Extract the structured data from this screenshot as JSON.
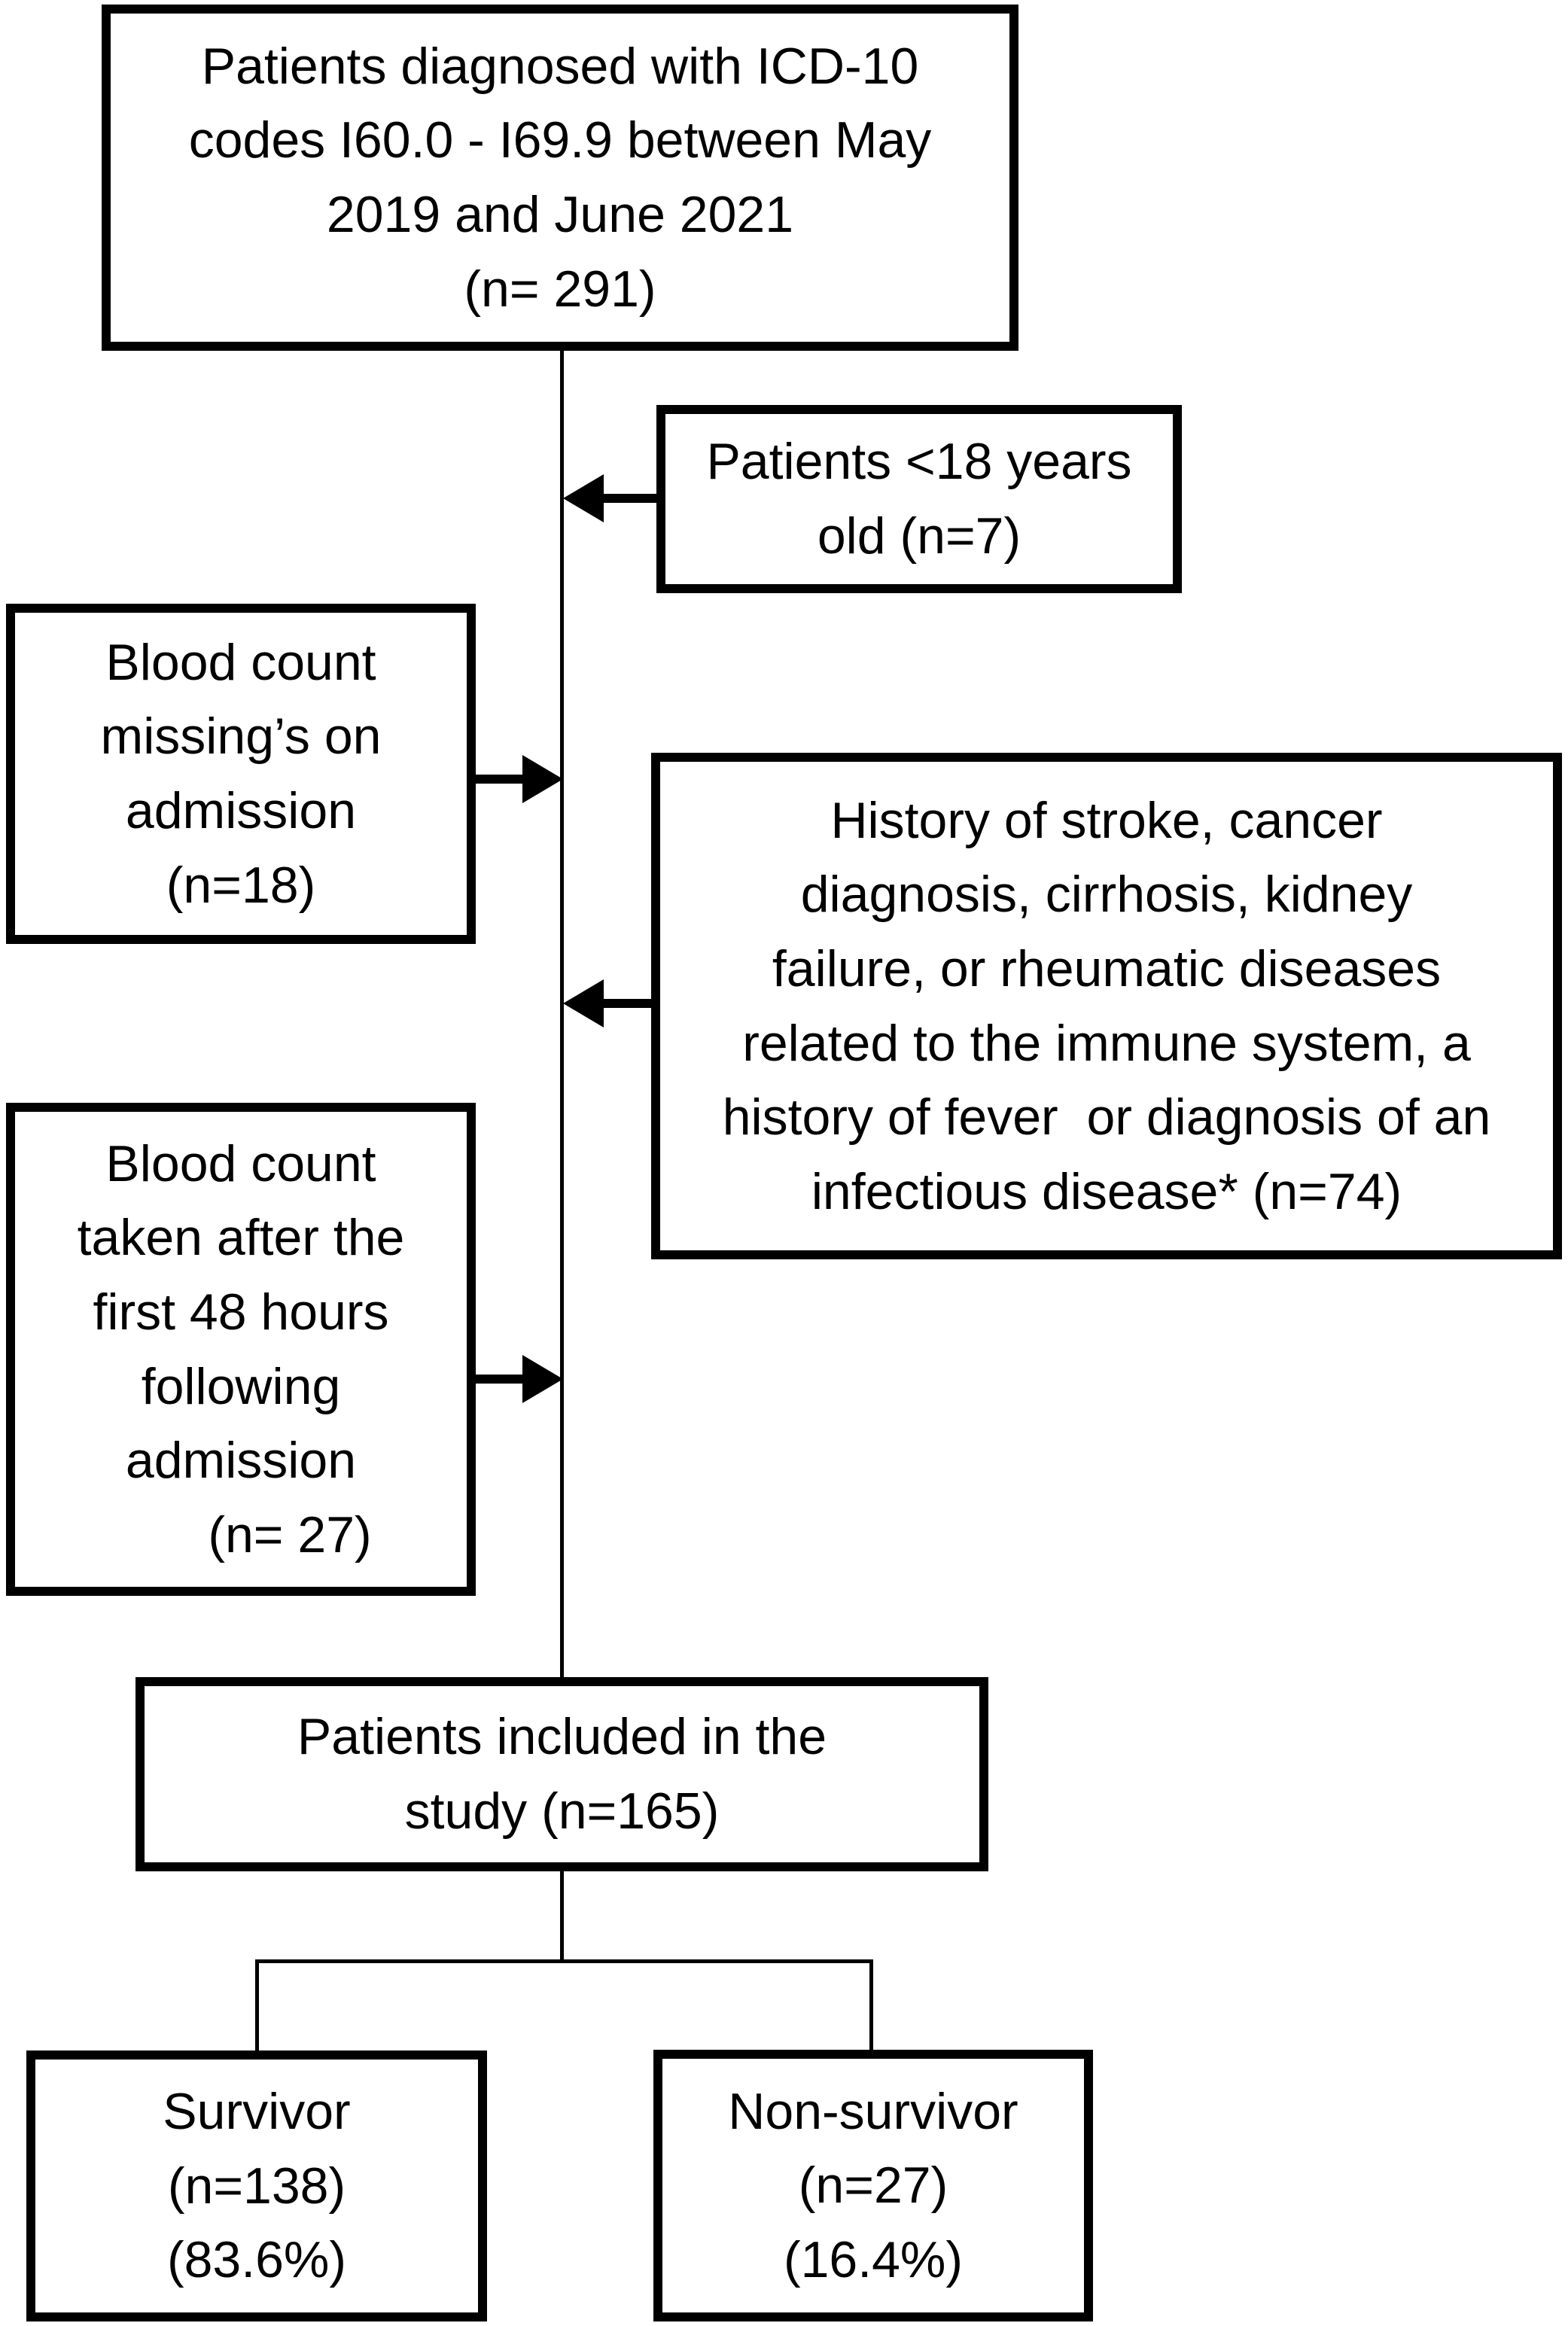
{
  "colors": {
    "line": "#000000",
    "text": "#000000",
    "background": "#ffffff"
  },
  "nodes": {
    "diagnosed": {
      "lines": [
        "Patients diagnosed with ICD-10",
        "codes I60.0 - I69.9 between May",
        "2019 and June 2021",
        "(n= 291)"
      ],
      "n": 291
    },
    "excluded_under_18": {
      "lines": [
        "Patients <18 years",
        "old (n=7)"
      ],
      "n": 7
    },
    "excluded_missing_blood_count": {
      "lines": [
        "Blood count",
        "missing’s on",
        "admission",
        "(n=18)"
      ],
      "n": 18
    },
    "excluded_history": {
      "lines": [
        "History of stroke, cancer",
        "diagnosis, cirrhosis, kidney",
        "failure, or rheumatic diseases",
        "related to the immune system, a",
        "history of fever  or diagnosis of an",
        "infectious disease* (n=74)"
      ],
      "n": 74
    },
    "excluded_late_blood_count": {
      "lines": [
        "Blood count",
        "taken after the",
        "first 48 hours",
        "following",
        "admission",
        "(n= 27)"
      ],
      "n": 27
    },
    "included": {
      "lines": [
        "Patients included in the",
        "study (n=165)"
      ],
      "n": 165
    },
    "survivor": {
      "lines": [
        "Survivor",
        "(n=138)",
        "(83.6%)"
      ],
      "n": 138,
      "percent": "83.6%"
    },
    "non_survivor": {
      "lines": [
        "Non-survivor",
        "(n=27)",
        "(16.4%)"
      ],
      "n": 27,
      "percent": "16.4%"
    }
  },
  "connectors": {
    "spine": "vertical line from diagnosed box to included box",
    "exclusion_arrows": [
      {
        "node": "excluded_under_18",
        "points": "left into spine"
      },
      {
        "node": "excluded_missing_blood_count",
        "points": "right into spine"
      },
      {
        "node": "excluded_history",
        "points": "left into spine"
      },
      {
        "node": "excluded_late_blood_count",
        "points": "right into spine"
      }
    ],
    "split": "included box branches to survivor and non_survivor"
  }
}
